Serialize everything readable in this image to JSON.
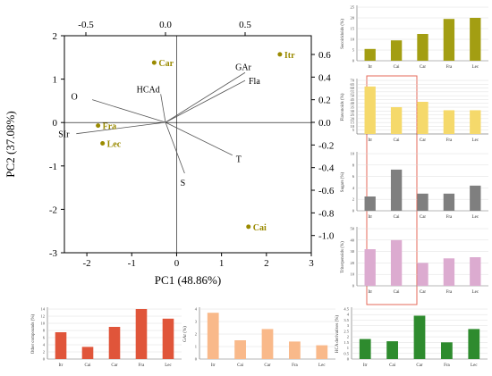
{
  "chart_data": [
    {
      "type": "scatter",
      "subtype": "biplot",
      "xlabel": "PC1 (48.86%)",
      "ylabel": "PC2 (37.08%)",
      "xlim": [
        -2.5,
        3
      ],
      "ylim": [
        -3,
        2
      ],
      "x_ticks": [
        "-2",
        "-1",
        "0",
        "1",
        "2",
        "3"
      ],
      "y_ticks": [
        "2",
        "1",
        "0",
        "-1",
        "-2",
        "-3"
      ],
      "top_ticks": [
        "-0.5",
        "0.0",
        "0.5"
      ],
      "right_ticks": [
        "0.6",
        "0.4",
        "0.2",
        "0.0",
        "-0.2",
        "-0.4",
        "-0.6",
        "-0.8",
        "-1.0"
      ],
      "point_color": "#9a8a00",
      "points": [
        {
          "label": "Itr",
          "x": 2.3,
          "y": 1.57
        },
        {
          "label": "Car",
          "x": -0.5,
          "y": 1.38
        },
        {
          "label": "Fra",
          "x": -1.75,
          "y": -0.07
        },
        {
          "label": "Lec",
          "x": -1.65,
          "y": -0.48
        },
        {
          "label": "Cai",
          "x": 1.6,
          "y": -2.4
        }
      ],
      "loadings": [
        {
          "label": "GAr",
          "x": 0.5,
          "y": 0.44
        },
        {
          "label": "Fla",
          "x": 0.5,
          "y": 0.37
        },
        {
          "label": "HCAd",
          "x": -0.03,
          "y": 0.25
        },
        {
          "label": "O",
          "x": -0.46,
          "y": 0.2
        },
        {
          "label": "SIr",
          "x": -0.56,
          "y": -0.1
        },
        {
          "label": "T",
          "x": 0.42,
          "y": -0.29
        },
        {
          "label": "S",
          "x": 0.12,
          "y": -0.45
        }
      ]
    },
    {
      "type": "bar",
      "ylabel": "Secoiridoids (%)",
      "categories": [
        "Itr",
        "Cai",
        "Car",
        "Fra",
        "Lec"
      ],
      "values": [
        5.5,
        9.5,
        12.5,
        19.5,
        20
      ],
      "yticks": [
        0,
        5,
        10,
        15,
        20,
        25
      ],
      "ylim": [
        0,
        25
      ],
      "color": "#a39e12"
    },
    {
      "type": "bar",
      "ylabel": "Flavonoids (%)",
      "categories": [
        "Itr",
        "Cai",
        "Car",
        "Fra",
        "Lec"
      ],
      "values": [
        62,
        35,
        42,
        31,
        31
      ],
      "yticks": [
        5,
        10,
        15,
        20,
        25,
        30,
        35,
        40,
        45,
        50,
        55,
        60,
        65,
        70
      ],
      "ylim": [
        0,
        70
      ],
      "color": "#f5d96b"
    },
    {
      "type": "bar",
      "ylabel": "Sugars (%)",
      "categories": [
        "Itr",
        "Cai",
        "Car",
        "Fra",
        "Lec"
      ],
      "values": [
        2.5,
        7.2,
        3,
        3,
        4.4
      ],
      "yticks": [
        0,
        2,
        4,
        6,
        8,
        10
      ],
      "ylim": [
        0,
        10
      ],
      "color": "#7f7f7f"
    },
    {
      "type": "bar",
      "ylabel": "Triterpenoids (%)",
      "categories": [
        "Itr",
        "Cai",
        "Car",
        "Fra",
        "Lec"
      ],
      "values": [
        32,
        40,
        20,
        24,
        25
      ],
      "yticks": [
        0,
        10,
        20,
        30,
        40,
        50
      ],
      "ylim": [
        0,
        50
      ],
      "color": "#dcabd0"
    },
    {
      "type": "bar",
      "ylabel": "Other compounds (%)",
      "categories": [
        "Itr",
        "Cai",
        "Car",
        "Fra",
        "Lec"
      ],
      "values": [
        7.5,
        3.4,
        9,
        14,
        11.3
      ],
      "yticks": [
        0,
        2,
        4,
        6,
        8,
        10,
        12,
        14
      ],
      "ylim": [
        0,
        14
      ],
      "color": "#e0553a"
    },
    {
      "type": "bar",
      "ylabel": "GAr (%)",
      "categories": [
        "Itr",
        "Cai",
        "Car",
        "Fra",
        "Lec"
      ],
      "values": [
        3.7,
        1.5,
        2.4,
        1.4,
        1.1
      ],
      "yticks": [
        0,
        1,
        2,
        3,
        4
      ],
      "ylim": [
        0,
        4
      ],
      "color": "#f9b98a"
    },
    {
      "type": "bar",
      "ylabel": "HCA derivatives (%)",
      "categories": [
        "Itr",
        "Cai",
        "Car",
        "Fra",
        "Lec"
      ],
      "values": [
        1.8,
        1.6,
        3.9,
        1.5,
        2.7
      ],
      "yticks": [
        0,
        0.5,
        1,
        1.5,
        2,
        2.5,
        3,
        3.5,
        4,
        4.5
      ],
      "ylim": [
        0,
        4.5
      ],
      "color": "#2e8b2e"
    }
  ]
}
